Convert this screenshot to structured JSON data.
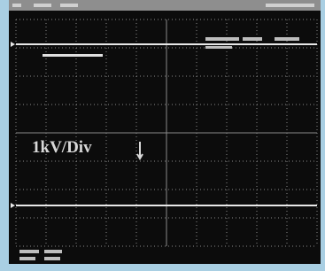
{
  "screen": {
    "scale_label": "1kV/Div"
  }
}
